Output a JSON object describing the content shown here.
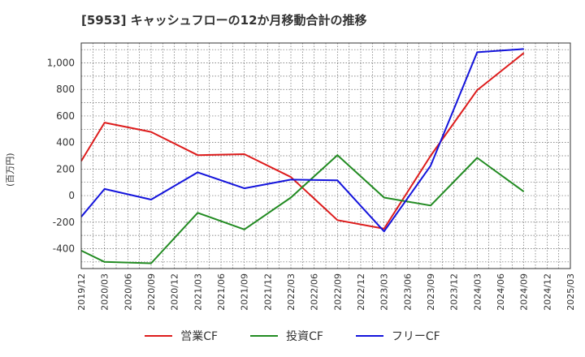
{
  "chart_data": {
    "type": "line",
    "title": "[5953]  キャッシュフローの12か月移動合計の推移",
    "ylabel": "(百万円)",
    "xlabel": "",
    "ylim": [
      -550,
      1150
    ],
    "yticks": [
      -400,
      -200,
      0,
      200,
      400,
      600,
      800,
      1000
    ],
    "ytick_labels": [
      "-400",
      "-200",
      "0",
      "200",
      "400",
      "600",
      "800",
      "1,000"
    ],
    "x_ticks": [
      "2019/12",
      "2020/03",
      "2020/06",
      "2020/09",
      "2020/12",
      "2021/03",
      "2021/06",
      "2021/09",
      "2021/12",
      "2022/03",
      "2022/06",
      "2022/09",
      "2022/12",
      "2023/03",
      "2023/06",
      "2023/09",
      "2023/12",
      "2024/03",
      "2024/06",
      "2024/09",
      "2024/12",
      "2025/03"
    ],
    "grid": true,
    "legend_position": "bottom",
    "series": [
      {
        "name": "営業CF",
        "color": "#dd1c1c",
        "points": [
          {
            "x": "2019/12",
            "y": 260
          },
          {
            "x": "2020/03",
            "y": 550
          },
          {
            "x": "2020/09",
            "y": 480
          },
          {
            "x": "2021/03",
            "y": 305
          },
          {
            "x": "2021/09",
            "y": 312
          },
          {
            "x": "2022/03",
            "y": 140
          },
          {
            "x": "2022/09",
            "y": -185
          },
          {
            "x": "2023/03",
            "y": -250
          },
          {
            "x": "2023/09",
            "y": 300
          },
          {
            "x": "2024/03",
            "y": 795
          },
          {
            "x": "2024/09",
            "y": 1075
          }
        ]
      },
      {
        "name": "投資CF",
        "color": "#228b22",
        "points": [
          {
            "x": "2019/12",
            "y": -415
          },
          {
            "x": "2020/03",
            "y": -500
          },
          {
            "x": "2020/09",
            "y": -510
          },
          {
            "x": "2021/03",
            "y": -130
          },
          {
            "x": "2021/09",
            "y": -255
          },
          {
            "x": "2022/03",
            "y": -15
          },
          {
            "x": "2022/09",
            "y": 305
          },
          {
            "x": "2023/03",
            "y": -15
          },
          {
            "x": "2023/09",
            "y": -75
          },
          {
            "x": "2024/03",
            "y": 285
          },
          {
            "x": "2024/09",
            "y": 30
          }
        ]
      },
      {
        "name": "フリーCF",
        "color": "#1414dc",
        "points": [
          {
            "x": "2019/12",
            "y": -160
          },
          {
            "x": "2020/03",
            "y": 50
          },
          {
            "x": "2020/09",
            "y": -30
          },
          {
            "x": "2021/03",
            "y": 175
          },
          {
            "x": "2021/09",
            "y": 55
          },
          {
            "x": "2022/03",
            "y": 120
          },
          {
            "x": "2022/09",
            "y": 115
          },
          {
            "x": "2023/03",
            "y": -270
          },
          {
            "x": "2023/09",
            "y": 225
          },
          {
            "x": "2024/03",
            "y": 1080
          },
          {
            "x": "2024/09",
            "y": 1105
          }
        ]
      }
    ]
  }
}
